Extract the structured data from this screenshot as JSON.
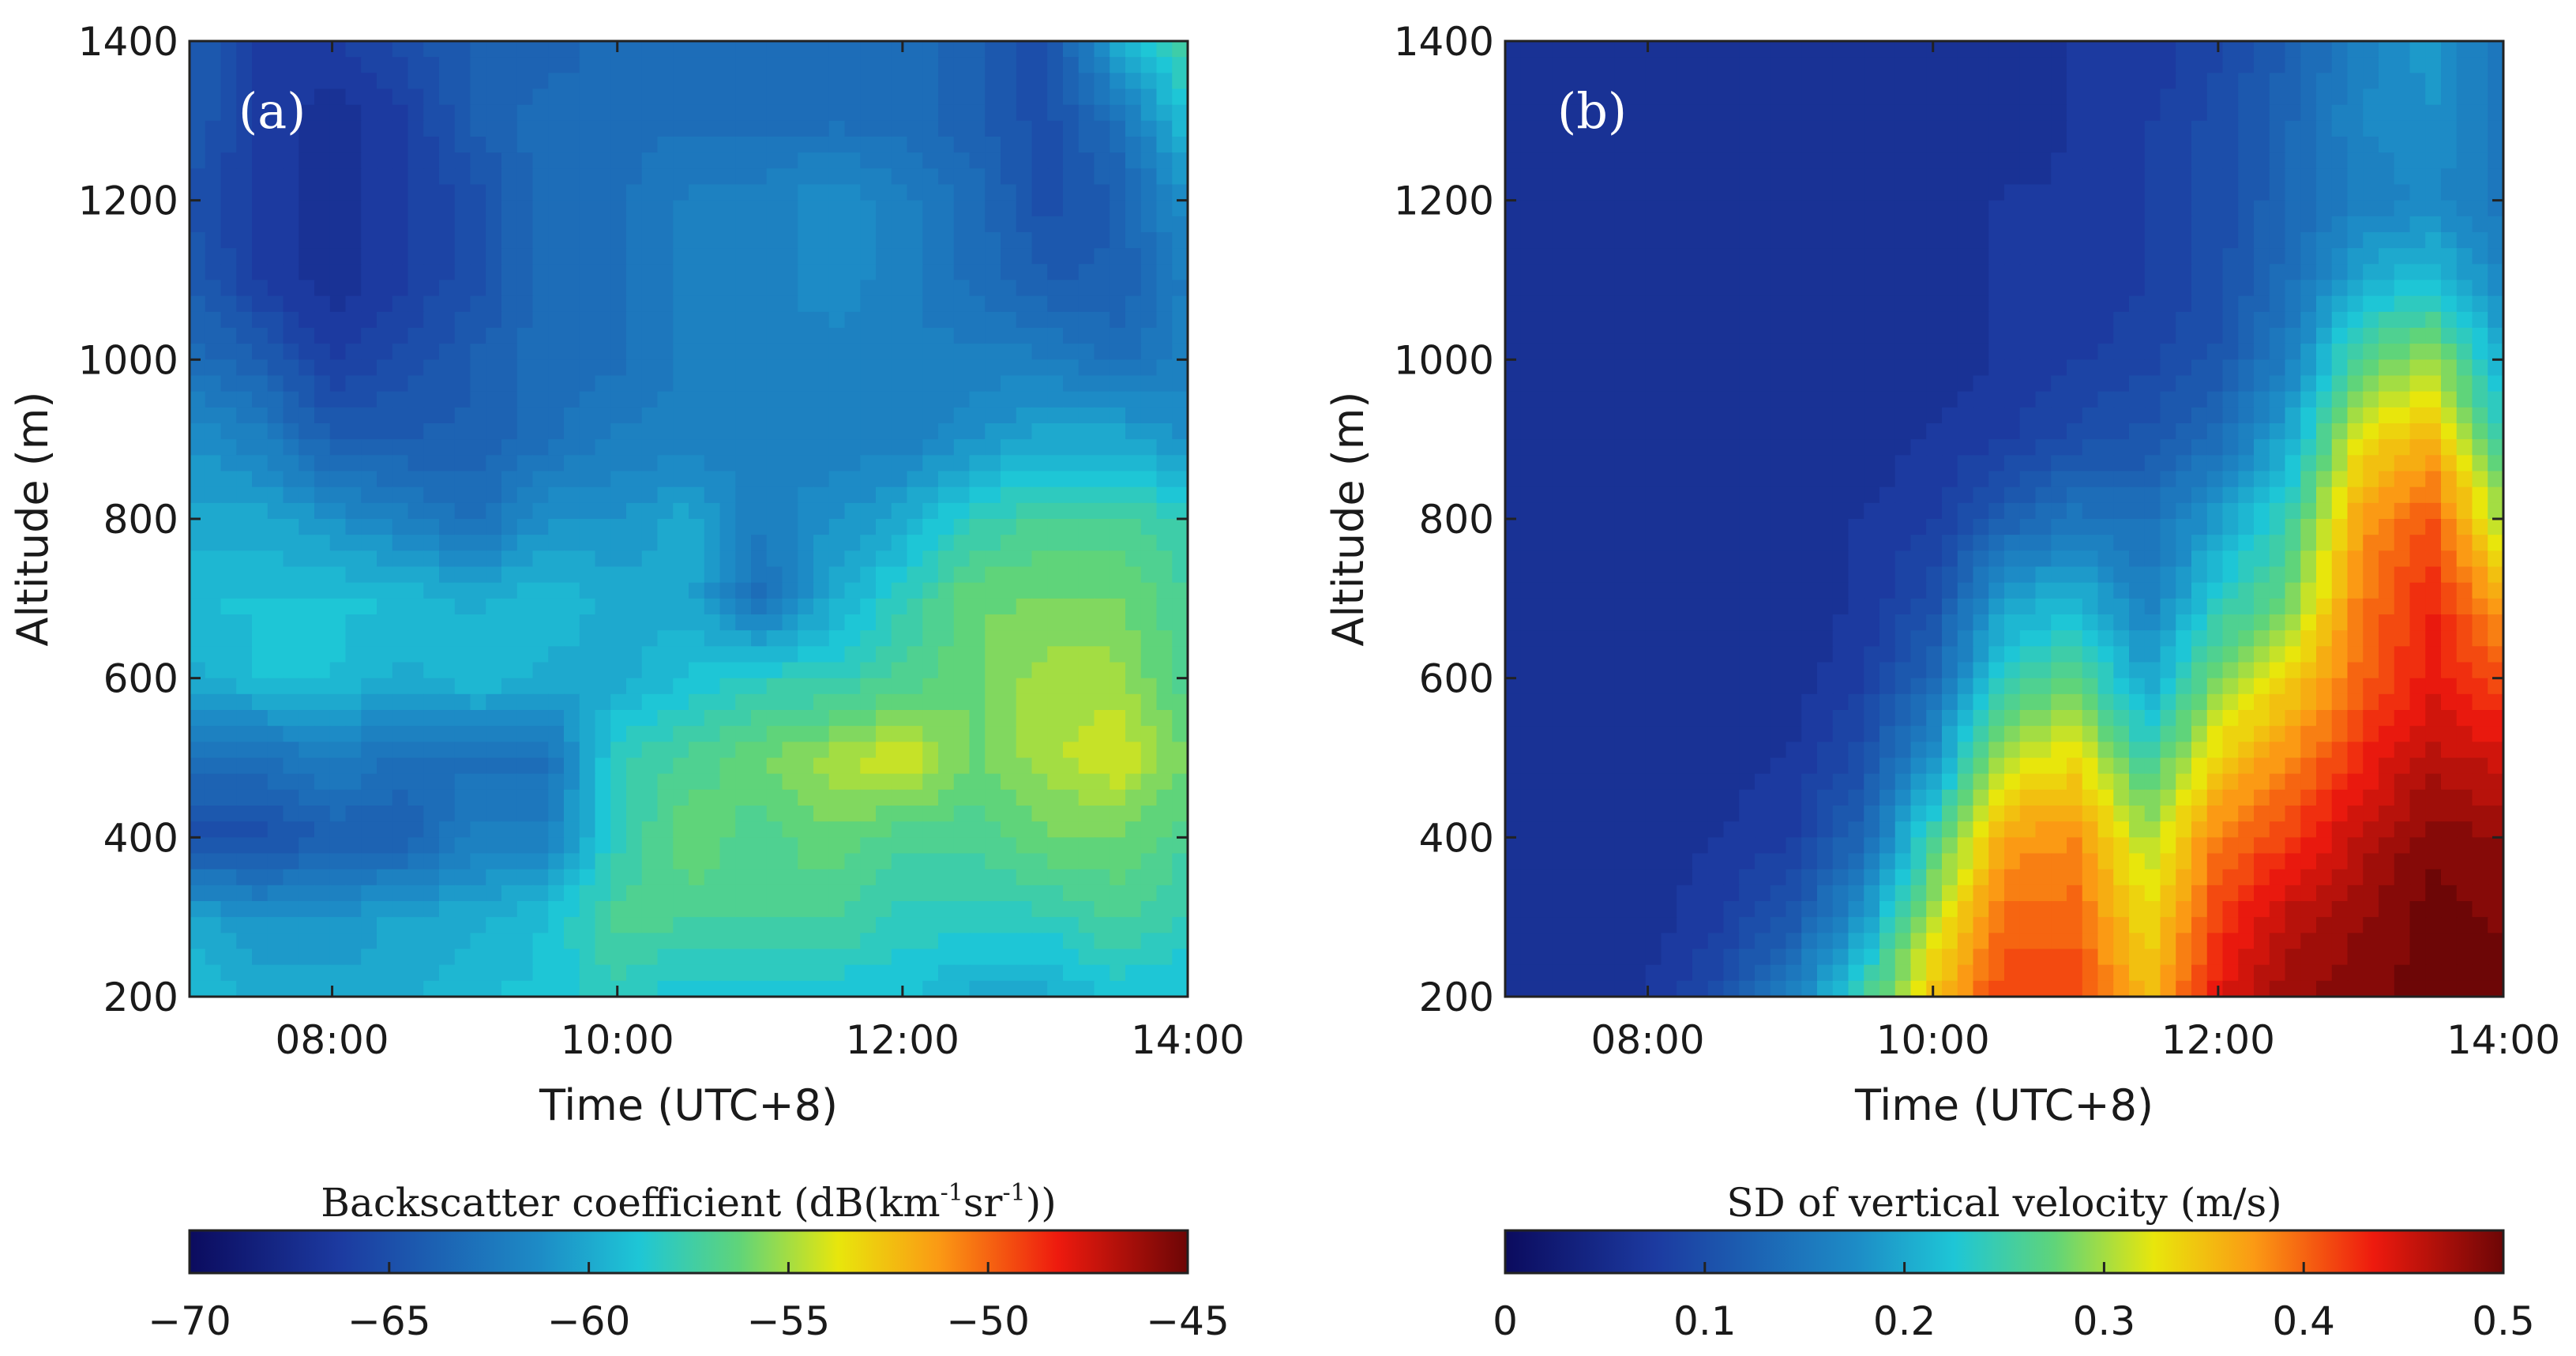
{
  "chart_data": [
    {
      "type": "heatmap",
      "panel_label": "(a)",
      "xlabel": "Time (UTC+8)",
      "ylabel": "Altitude (m)",
      "x_ticks": [
        "08:00",
        "10:00",
        "12:00",
        "14:00"
      ],
      "x_tick_hours": [
        8,
        10,
        12,
        14
      ],
      "xlim_hours": [
        7,
        14
      ],
      "y_ticks": [
        "200",
        "400",
        "600",
        "800",
        "1000",
        "1200",
        "1400"
      ],
      "y_tick_values": [
        200,
        400,
        600,
        800,
        1000,
        1200,
        1400
      ],
      "ylim": [
        200,
        1400
      ],
      "colorbar": {
        "title_prefix": "Backscatter coefficient (dB(km",
        "title_sup1": "-1",
        "title_mid": "sr",
        "title_sup2": "-1",
        "title_suffix": "))",
        "ticks": [
          "−70",
          "−65",
          "−60",
          "−55",
          "−50",
          "−45"
        ],
        "tick_values": [
          -70,
          -65,
          -60,
          -55,
          -50,
          -45
        ],
        "range": [
          -70,
          -45
        ]
      },
      "grid_times": [
        7,
        7.5,
        8,
        8.5,
        9,
        9.5,
        10,
        10.5,
        11,
        11.5,
        12,
        12.5,
        13,
        13.5,
        14
      ],
      "grid_altitudes": [
        1400,
        1300,
        1200,
        1100,
        1000,
        900,
        800,
        700,
        600,
        500,
        400,
        300,
        200
      ],
      "values": [
        [
          -64,
          -66,
          -66,
          -65,
          -64,
          -64,
          -63,
          -63,
          -63,
          -63,
          -63,
          -64,
          -65,
          -60,
          -57
        ],
        [
          -64,
          -66,
          -67,
          -66,
          -64,
          -63,
          -63,
          -63,
          -63,
          -63,
          -63,
          -64,
          -65,
          -63,
          -59
        ],
        [
          -65,
          -66,
          -67,
          -66,
          -65,
          -63,
          -63,
          -62,
          -62,
          -61,
          -62,
          -63,
          -65,
          -64,
          -61
        ],
        [
          -64,
          -66,
          -67,
          -66,
          -65,
          -63,
          -63,
          -62,
          -62,
          -61,
          -62,
          -63,
          -64,
          -64,
          -62
        ],
        [
          -63,
          -64,
          -66,
          -65,
          -64,
          -63,
          -63,
          -62,
          -62,
          -62,
          -62,
          -62,
          -62,
          -63,
          -62
        ],
        [
          -61,
          -62,
          -64,
          -64,
          -64,
          -63,
          -62,
          -62,
          -62,
          -62,
          -62,
          -61,
          -60,
          -60,
          -61
        ],
        [
          -60,
          -60,
          -61,
          -62,
          -63,
          -61,
          -61,
          -60,
          -62,
          -61,
          -60,
          -58,
          -57,
          -57,
          -58
        ],
        [
          -59,
          -59,
          -59,
          -59,
          -60,
          -59,
          -60,
          -60,
          -63,
          -60,
          -58,
          -56,
          -56,
          -56,
          -57
        ],
        [
          -60,
          -59,
          -59,
          -60,
          -59,
          -60,
          -60,
          -59,
          -58,
          -58,
          -57,
          -56,
          -55,
          -55,
          -57
        ],
        [
          -63,
          -63,
          -62,
          -63,
          -63,
          -63,
          -58,
          -57,
          -56,
          -55,
          -54,
          -56,
          -55,
          -54,
          -56
        ],
        [
          -65,
          -65,
          -64,
          -64,
          -62,
          -62,
          -58,
          -56,
          -57,
          -56,
          -57,
          -57,
          -56,
          -56,
          -57
        ],
        [
          -60,
          -61,
          -61,
          -60,
          -60,
          -59,
          -57,
          -57,
          -57,
          -57,
          -58,
          -58,
          -58,
          -57,
          -58
        ],
        [
          -59,
          -60,
          -60,
          -60,
          -59,
          -59,
          -58,
          -59,
          -59,
          -59,
          -59,
          -60,
          -60,
          -59,
          -59
        ]
      ]
    },
    {
      "type": "heatmap",
      "panel_label": "(b)",
      "xlabel": "Time (UTC+8)",
      "ylabel": "Altitude (m)",
      "x_ticks": [
        "08:00",
        "10:00",
        "12:00",
        "14:00"
      ],
      "x_tick_hours": [
        8,
        10,
        12,
        14
      ],
      "xlim_hours": [
        7,
        14
      ],
      "y_ticks": [
        "200",
        "400",
        "600",
        "800",
        "1000",
        "1200",
        "1400"
      ],
      "y_tick_values": [
        200,
        400,
        600,
        800,
        1000,
        1200,
        1400
      ],
      "ylim": [
        200,
        1400
      ],
      "colorbar": {
        "title": "SD of vertical velocity (m/s)",
        "ticks": [
          "0",
          "0.1",
          "0.2",
          "0.3",
          "0.4",
          "0.5"
        ],
        "tick_values": [
          0,
          0.1,
          0.2,
          0.3,
          0.4,
          0.5
        ],
        "range": [
          0,
          0.5
        ]
      },
      "grid_times": [
        7,
        7.5,
        8,
        8.5,
        9,
        9.5,
        10,
        10.5,
        11,
        11.5,
        12,
        12.5,
        13,
        13.5,
        14
      ],
      "grid_altitudes": [
        1400,
        1300,
        1200,
        1100,
        1000,
        900,
        800,
        700,
        600,
        500,
        400,
        300,
        200
      ],
      "values": [
        [
          0.06,
          0.06,
          0.06,
          0.06,
          0.06,
          0.06,
          0.06,
          0.06,
          0.07,
          0.07,
          0.09,
          0.12,
          0.16,
          0.19,
          0.14
        ],
        [
          0.06,
          0.06,
          0.06,
          0.06,
          0.06,
          0.06,
          0.06,
          0.06,
          0.07,
          0.08,
          0.1,
          0.13,
          0.17,
          0.18,
          0.15
        ],
        [
          0.06,
          0.06,
          0.06,
          0.06,
          0.06,
          0.06,
          0.06,
          0.07,
          0.07,
          0.08,
          0.1,
          0.13,
          0.16,
          0.17,
          0.15
        ],
        [
          0.06,
          0.06,
          0.06,
          0.06,
          0.06,
          0.06,
          0.06,
          0.07,
          0.07,
          0.08,
          0.1,
          0.14,
          0.2,
          0.22,
          0.17
        ],
        [
          0.06,
          0.06,
          0.06,
          0.06,
          0.06,
          0.06,
          0.06,
          0.07,
          0.08,
          0.09,
          0.11,
          0.16,
          0.27,
          0.3,
          0.2
        ],
        [
          0.06,
          0.06,
          0.06,
          0.06,
          0.06,
          0.06,
          0.07,
          0.08,
          0.1,
          0.11,
          0.14,
          0.2,
          0.33,
          0.36,
          0.24
        ],
        [
          0.06,
          0.06,
          0.06,
          0.06,
          0.06,
          0.07,
          0.08,
          0.12,
          0.15,
          0.14,
          0.19,
          0.25,
          0.37,
          0.41,
          0.3
        ],
        [
          0.06,
          0.06,
          0.06,
          0.06,
          0.06,
          0.07,
          0.1,
          0.19,
          0.21,
          0.16,
          0.23,
          0.28,
          0.39,
          0.43,
          0.36
        ],
        [
          0.06,
          0.06,
          0.06,
          0.06,
          0.06,
          0.08,
          0.13,
          0.24,
          0.27,
          0.19,
          0.29,
          0.34,
          0.4,
          0.44,
          0.41
        ],
        [
          0.06,
          0.06,
          0.06,
          0.06,
          0.07,
          0.1,
          0.18,
          0.31,
          0.33,
          0.25,
          0.34,
          0.38,
          0.43,
          0.46,
          0.45
        ],
        [
          0.06,
          0.06,
          0.06,
          0.07,
          0.08,
          0.13,
          0.25,
          0.37,
          0.38,
          0.3,
          0.39,
          0.42,
          0.46,
          0.49,
          0.48
        ],
        [
          0.06,
          0.06,
          0.06,
          0.08,
          0.11,
          0.18,
          0.31,
          0.4,
          0.4,
          0.33,
          0.42,
          0.46,
          0.48,
          0.5,
          0.49
        ],
        [
          0.06,
          0.06,
          0.07,
          0.1,
          0.16,
          0.25,
          0.35,
          0.42,
          0.42,
          0.35,
          0.44,
          0.48,
          0.49,
          0.5,
          0.5
        ]
      ]
    }
  ]
}
